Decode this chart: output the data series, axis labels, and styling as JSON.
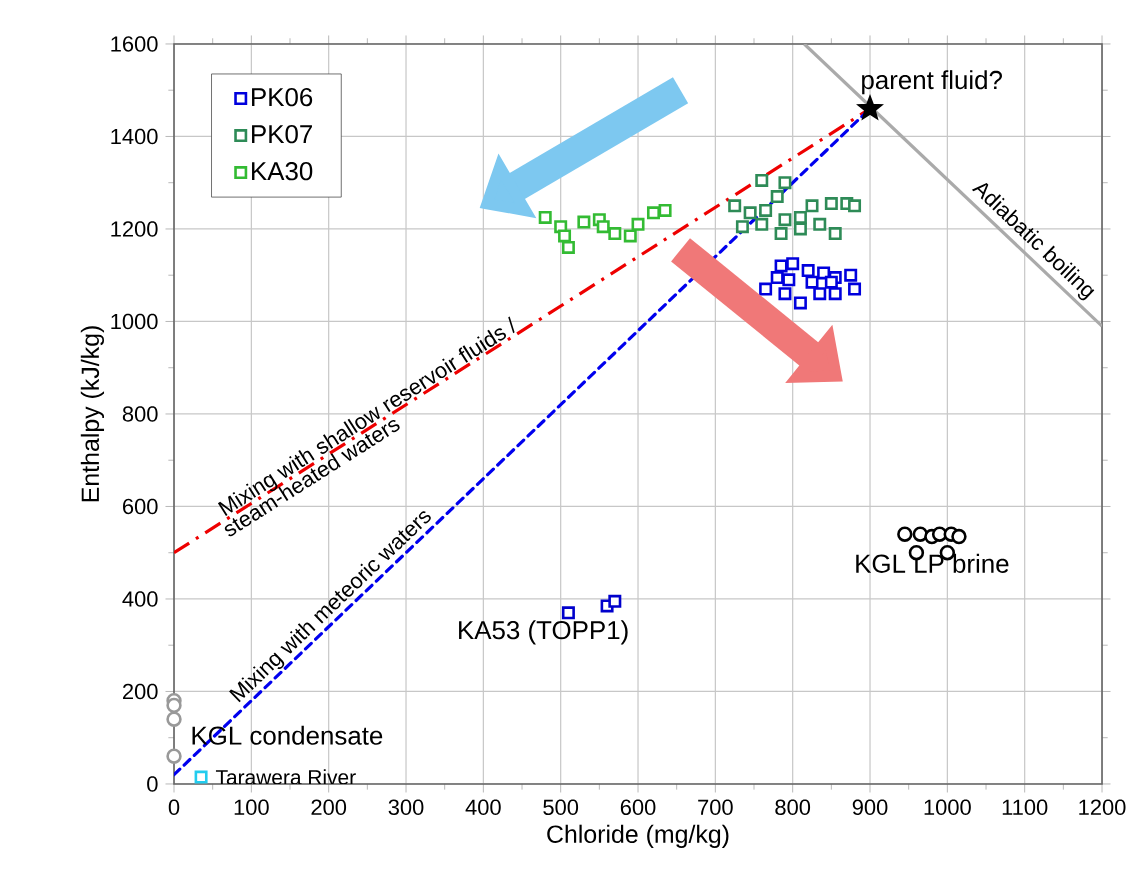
{
  "chart_data": {
    "type": "scatter",
    "xlabel": "Chloride (mg/kg)",
    "ylabel": "Enthalpy (kJ/kg)",
    "xlim": [
      0,
      1200
    ],
    "ylim": [
      0,
      1600
    ],
    "xticks": [
      0,
      100,
      200,
      300,
      400,
      500,
      600,
      700,
      800,
      900,
      1000,
      1100,
      1200
    ],
    "yticks": [
      0,
      200,
      400,
      600,
      800,
      1000,
      1200,
      1400,
      1600
    ],
    "grid": true,
    "legend": "top left",
    "series": [
      {
        "type": "scatter",
        "name": "PK06",
        "color": "#0000dd",
        "marker": "square",
        "x": [
          785,
          800,
          820,
          840,
          855,
          875,
          765,
          790,
          810,
          835,
          855,
          880,
          795,
          825,
          850,
          780
        ],
        "values": [
          1120,
          1125,
          1110,
          1105,
          1095,
          1100,
          1070,
          1060,
          1040,
          1060,
          1060,
          1070,
          1090,
          1085,
          1085,
          1095
        ]
      },
      {
        "type": "scatter",
        "name": "PK07",
        "color": "#2e8b57",
        "marker": "square",
        "x": [
          760,
          790,
          780,
          725,
          745,
          765,
          790,
          810,
          825,
          850,
          870,
          880,
          810,
          835,
          855,
          785,
          760,
          735
        ],
        "values": [
          1305,
          1300,
          1270,
          1250,
          1235,
          1240,
          1220,
          1225,
          1250,
          1255,
          1255,
          1250,
          1200,
          1210,
          1190,
          1190,
          1210,
          1205
        ]
      },
      {
        "type": "scatter",
        "name": "KA30",
        "color": "#33bb33",
        "marker": "square",
        "x": [
          480,
          500,
          505,
          510,
          530,
          550,
          555,
          570,
          590,
          600,
          620,
          635
        ],
        "values": [
          1225,
          1205,
          1185,
          1160,
          1215,
          1220,
          1205,
          1190,
          1185,
          1210,
          1235,
          1240
        ]
      },
      {
        "type": "scatter",
        "color": "#0000cc",
        "marker": "square",
        "x": [
          510,
          560,
          570
        ],
        "values": [
          370,
          385,
          395
        ]
      },
      {
        "type": "scatter",
        "color": "#000000",
        "marker": "circle",
        "x": [
          945,
          965,
          980,
          990,
          1005,
          1015,
          960,
          1000
        ],
        "values": [
          540,
          540,
          535,
          540,
          540,
          535,
          500,
          500
        ]
      },
      {
        "type": "scatter",
        "color": "#999999",
        "marker": "circle",
        "x": [
          0,
          0,
          0,
          0
        ],
        "values": [
          180,
          170,
          140,
          60
        ]
      },
      {
        "type": "scatter",
        "color": "#22ccee",
        "marker": "square",
        "x": [
          35
        ],
        "values": [
          15
        ]
      },
      {
        "type": "scatter",
        "color": "#000000",
        "marker": "star",
        "x": [
          900
        ],
        "values": [
          1460
        ]
      },
      {
        "type": "line",
        "color": "#ee0000",
        "line_style": "dashdot",
        "x": [
          0,
          900
        ],
        "values": [
          500,
          1460
        ]
      },
      {
        "type": "line",
        "color": "#0000ee",
        "line_style": "dashed",
        "x": [
          0,
          900
        ],
        "values": [
          20,
          1460
        ]
      },
      {
        "type": "line",
        "color": "#aaaaaa",
        "line_style": "solid",
        "x": [
          815,
          1200
        ],
        "values": [
          1600,
          990
        ]
      }
    ],
    "annotations": [
      {
        "text": "parent fluid?",
        "x": 900,
        "y": 1460
      },
      {
        "text": "Adiabatic boiling",
        "x": 1095,
        "y": 1155
      },
      {
        "text": "Mixing with shallow reservoir fluids /",
        "x": 260,
        "y": 780
      },
      {
        "text": "steam-heated waters",
        "x": 170,
        "y": 680
      },
      {
        "text": "Mixing with meteoric waters",
        "x": 215,
        "y": 364
      },
      {
        "text": "KA53 (TOPP1)",
        "x": 560,
        "y": 385
      },
      {
        "text": "KGL LP brine",
        "x": 980,
        "y": 520
      },
      {
        "text": "KGL condensate",
        "x": 0,
        "y": 170
      },
      {
        "text": "Tarawera River",
        "x": 35,
        "y": 15
      }
    ]
  }
}
